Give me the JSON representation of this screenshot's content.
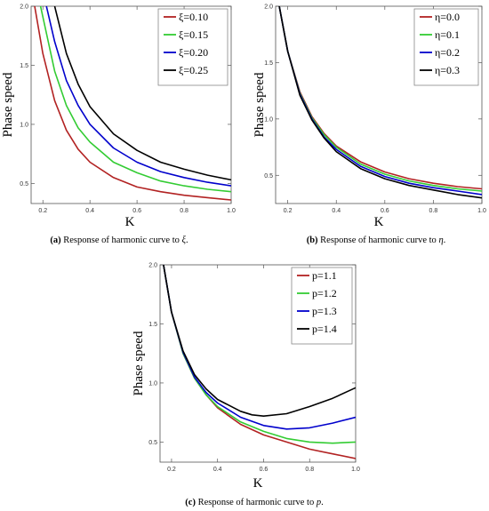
{
  "chart_data": [
    {
      "type": "line",
      "panel": "a",
      "caption_tag": "(a)",
      "caption_text": "Response of harmonic curve to ",
      "caption_sym": "ξ",
      "caption_end": ".",
      "xlabel": "K",
      "ylabel": "Phase  speed",
      "xlim": [
        0.15,
        1.0
      ],
      "ylim": [
        0.33,
        2.0
      ],
      "xticks": [
        0.2,
        0.4,
        0.6,
        0.8,
        1.0
      ],
      "xtick_labels": [
        "0.2",
        "0.4",
        "0.6",
        "0.8",
        "1.0"
      ],
      "yticks": [
        0.5,
        1.0,
        1.5,
        2.0
      ],
      "ytick_labels": [
        "0.5",
        "1.0",
        "1.5",
        "2.0"
      ],
      "legend_position": "top-right",
      "series": [
        {
          "name": "ξ=0.10",
          "color": "#b22222",
          "x": [
            0.165,
            0.2,
            0.25,
            0.3,
            0.35,
            0.4,
            0.5,
            0.6,
            0.7,
            0.8,
            0.9,
            1.0
          ],
          "y": [
            2.0,
            1.6,
            1.2,
            0.95,
            0.79,
            0.68,
            0.55,
            0.47,
            0.43,
            0.4,
            0.38,
            0.36
          ]
        },
        {
          "name": "ξ=0.15",
          "color": "#33cc33",
          "x": [
            0.19,
            0.25,
            0.3,
            0.35,
            0.4,
            0.5,
            0.6,
            0.7,
            0.8,
            0.9,
            1.0
          ],
          "y": [
            2.0,
            1.45,
            1.16,
            0.97,
            0.85,
            0.68,
            0.59,
            0.52,
            0.48,
            0.45,
            0.43
          ]
        },
        {
          "name": "ξ=0.20",
          "color": "#0000cc",
          "x": [
            0.215,
            0.25,
            0.3,
            0.35,
            0.4,
            0.5,
            0.6,
            0.7,
            0.8,
            0.9,
            1.0
          ],
          "y": [
            2.0,
            1.7,
            1.37,
            1.16,
            1.0,
            0.8,
            0.68,
            0.6,
            0.55,
            0.51,
            0.48
          ]
        },
        {
          "name": "ξ=0.25",
          "color": "#000000",
          "x": [
            0.25,
            0.3,
            0.35,
            0.4,
            0.5,
            0.6,
            0.7,
            0.8,
            0.9,
            1.0
          ],
          "y": [
            2.0,
            1.6,
            1.34,
            1.15,
            0.92,
            0.78,
            0.68,
            0.62,
            0.57,
            0.53
          ]
        }
      ]
    },
    {
      "type": "line",
      "panel": "b",
      "caption_tag": "(b)",
      "caption_text": "Response of harmonic curve to ",
      "caption_sym": "η",
      "caption_end": ".",
      "xlabel": "K",
      "ylabel": "Phase  speed",
      "xlim": [
        0.15,
        1.0
      ],
      "ylim": [
        0.25,
        2.0
      ],
      "xticks": [
        0.2,
        0.4,
        0.6,
        0.8,
        1.0
      ],
      "xtick_labels": [
        "0.2",
        "0.4",
        "0.6",
        "0.8",
        "1.0"
      ],
      "yticks": [
        0.5,
        1.0,
        1.5,
        2.0
      ],
      "ytick_labels": [
        "0.5",
        "1.0",
        "1.5",
        "2.0"
      ],
      "legend_position": "top-right",
      "series": [
        {
          "name": "η=0.0",
          "color": "#b22222",
          "x": [
            0.165,
            0.2,
            0.25,
            0.3,
            0.35,
            0.4,
            0.5,
            0.6,
            0.7,
            0.8,
            0.9,
            1.0
          ],
          "y": [
            2.0,
            1.6,
            1.24,
            1.02,
            0.87,
            0.76,
            0.62,
            0.53,
            0.47,
            0.43,
            0.4,
            0.38
          ]
        },
        {
          "name": "η=0.1",
          "color": "#33cc33",
          "x": [
            0.165,
            0.2,
            0.25,
            0.3,
            0.35,
            0.4,
            0.5,
            0.6,
            0.7,
            0.8,
            0.9,
            1.0
          ],
          "y": [
            2.0,
            1.6,
            1.23,
            1.01,
            0.86,
            0.75,
            0.6,
            0.51,
            0.45,
            0.41,
            0.38,
            0.36
          ]
        },
        {
          "name": "η=0.2",
          "color": "#0000cc",
          "x": [
            0.165,
            0.2,
            0.25,
            0.3,
            0.35,
            0.4,
            0.5,
            0.6,
            0.7,
            0.8,
            0.9,
            1.0
          ],
          "y": [
            2.0,
            1.6,
            1.22,
            1.0,
            0.84,
            0.73,
            0.58,
            0.49,
            0.43,
            0.39,
            0.36,
            0.33
          ]
        },
        {
          "name": "η=0.3",
          "color": "#000000",
          "x": [
            0.165,
            0.2,
            0.25,
            0.3,
            0.35,
            0.4,
            0.5,
            0.6,
            0.7,
            0.8,
            0.9,
            1.0
          ],
          "y": [
            2.0,
            1.6,
            1.21,
            0.99,
            0.83,
            0.71,
            0.56,
            0.47,
            0.41,
            0.37,
            0.33,
            0.3
          ]
        }
      ]
    },
    {
      "type": "line",
      "panel": "c",
      "caption_tag": "(c)",
      "caption_text": "Response of harmonic curve to ",
      "caption_sym": "p",
      "caption_end": ".",
      "xlabel": "K",
      "ylabel": "Phase  speed",
      "xlim": [
        0.15,
        1.0
      ],
      "ylim": [
        0.33,
        2.0
      ],
      "xticks": [
        0.2,
        0.4,
        0.6,
        0.8,
        1.0
      ],
      "xtick_labels": [
        "0.2",
        "0.4",
        "0.6",
        "0.8",
        "1.0"
      ],
      "yticks": [
        0.5,
        1.0,
        1.5,
        2.0
      ],
      "ytick_labels": [
        "0.5",
        "1.0",
        "1.5",
        "2.0"
      ],
      "legend_position": "top-right",
      "series": [
        {
          "name": "p=1.1",
          "color": "#b22222",
          "x": [
            0.165,
            0.2,
            0.25,
            0.3,
            0.35,
            0.4,
            0.5,
            0.6,
            0.7,
            0.8,
            0.9,
            1.0
          ],
          "y": [
            2.0,
            1.6,
            1.25,
            1.04,
            0.9,
            0.79,
            0.65,
            0.56,
            0.5,
            0.44,
            0.4,
            0.36
          ]
        },
        {
          "name": "p=1.2",
          "color": "#33cc33",
          "x": [
            0.165,
            0.2,
            0.25,
            0.3,
            0.35,
            0.4,
            0.5,
            0.6,
            0.7,
            0.8,
            0.9,
            1.0
          ],
          "y": [
            2.0,
            1.6,
            1.25,
            1.04,
            0.9,
            0.8,
            0.67,
            0.59,
            0.53,
            0.5,
            0.49,
            0.5
          ]
        },
        {
          "name": "p=1.3",
          "color": "#0000cc",
          "x": [
            0.165,
            0.2,
            0.25,
            0.3,
            0.35,
            0.4,
            0.5,
            0.6,
            0.7,
            0.8,
            0.9,
            1.0
          ],
          "y": [
            2.0,
            1.6,
            1.26,
            1.05,
            0.92,
            0.83,
            0.71,
            0.64,
            0.61,
            0.62,
            0.66,
            0.71
          ]
        },
        {
          "name": "p=1.4",
          "color": "#000000",
          "x": [
            0.165,
            0.2,
            0.25,
            0.3,
            0.35,
            0.4,
            0.5,
            0.55,
            0.6,
            0.7,
            0.8,
            0.9,
            1.0
          ],
          "y": [
            2.0,
            1.6,
            1.27,
            1.07,
            0.95,
            0.86,
            0.76,
            0.73,
            0.72,
            0.74,
            0.8,
            0.87,
            0.96
          ]
        }
      ]
    }
  ]
}
